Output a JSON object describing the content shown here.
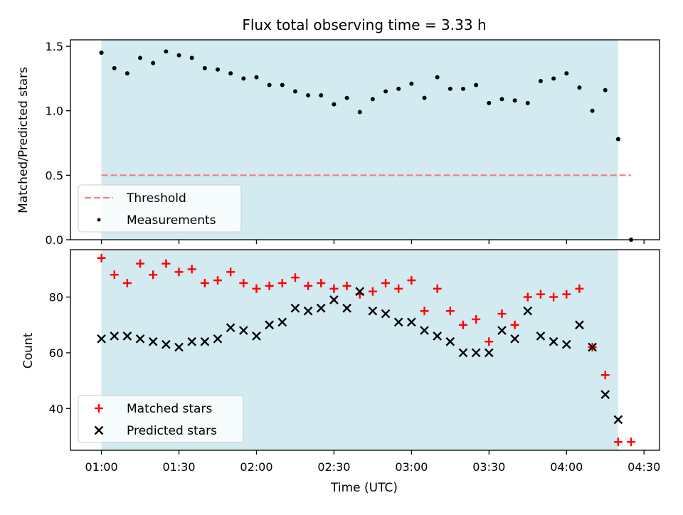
{
  "chart_data": [
    {
      "type": "scatter",
      "title": "Flux total observing time = 3.33 h",
      "xlabel": "",
      "ylabel": "Matched/Predicted stars",
      "xlim": [
        "00:48",
        "04:36"
      ],
      "ylim": [
        0,
        1.55
      ],
      "yticks": [
        0,
        0.5,
        1.0,
        1.5
      ],
      "ytick_labels": [
        "0.0",
        "0.5",
        "1.0",
        "1.5"
      ],
      "observing_window": [
        "01:00",
        "04:20"
      ],
      "observing_window_color": "#d3eaf0",
      "legend_position": "lower-left",
      "series": [
        {
          "name": "Threshold",
          "kind": "line",
          "style": "dashed",
          "color": "#f08080",
          "x": [
            "01:00",
            "04:25"
          ],
          "y": [
            0.5,
            0.5
          ]
        },
        {
          "name": "Measurements",
          "kind": "points",
          "marker": "dot",
          "color": "#000000",
          "x": [
            "01:00",
            "01:05",
            "01:10",
            "01:15",
            "01:20",
            "01:25",
            "01:30",
            "01:35",
            "01:40",
            "01:45",
            "01:50",
            "01:55",
            "02:00",
            "02:05",
            "02:10",
            "02:15",
            "02:20",
            "02:25",
            "02:30",
            "02:35",
            "02:40",
            "02:45",
            "02:50",
            "02:55",
            "03:00",
            "03:05",
            "03:10",
            "03:15",
            "03:20",
            "03:25",
            "03:30",
            "03:35",
            "03:40",
            "03:45",
            "03:50",
            "03:55",
            "04:00",
            "04:05",
            "04:10",
            "04:15",
            "04:20",
            "04:25"
          ],
          "y": [
            1.45,
            1.33,
            1.29,
            1.41,
            1.37,
            1.46,
            1.43,
            1.41,
            1.33,
            1.32,
            1.29,
            1.25,
            1.26,
            1.2,
            1.2,
            1.15,
            1.12,
            1.12,
            1.05,
            1.1,
            0.99,
            1.09,
            1.15,
            1.17,
            1.21,
            1.1,
            1.26,
            1.17,
            1.17,
            1.2,
            1.06,
            1.09,
            1.08,
            1.06,
            1.23,
            1.25,
            1.29,
            1.18,
            1.0,
            1.16,
            0.78,
            0.0
          ]
        }
      ]
    },
    {
      "type": "scatter",
      "title": "",
      "xlabel": "Time (UTC)",
      "ylabel": "Count",
      "xlim": [
        "00:48",
        "04:36"
      ],
      "ylim": [
        25,
        97
      ],
      "xticks": [
        "01:00",
        "01:30",
        "02:00",
        "02:30",
        "03:00",
        "03:30",
        "04:00",
        "04:30"
      ],
      "xtick_labels": [
        "01:00",
        "01:30",
        "02:00",
        "02:30",
        "03:00",
        "03:30",
        "04:00",
        "04:30"
      ],
      "yticks": [
        40,
        60,
        80
      ],
      "ytick_labels": [
        "40",
        "60",
        "80"
      ],
      "observing_window": [
        "01:00",
        "04:20"
      ],
      "observing_window_color": "#d3eaf0",
      "legend_position": "lower-left",
      "series": [
        {
          "name": "Matched stars",
          "kind": "points",
          "marker": "plus",
          "color": "#ff0000",
          "x": [
            "01:00",
            "01:05",
            "01:10",
            "01:15",
            "01:20",
            "01:25",
            "01:30",
            "01:35",
            "01:40",
            "01:45",
            "01:50",
            "01:55",
            "02:00",
            "02:05",
            "02:10",
            "02:15",
            "02:20",
            "02:25",
            "02:30",
            "02:35",
            "02:40",
            "02:45",
            "02:50",
            "02:55",
            "03:00",
            "03:05",
            "03:10",
            "03:15",
            "03:20",
            "03:25",
            "03:30",
            "03:35",
            "03:40",
            "03:45",
            "03:50",
            "03:55",
            "04:00",
            "04:05",
            "04:10",
            "04:15",
            "04:20",
            "04:25"
          ],
          "y": [
            94,
            88,
            85,
            92,
            88,
            92,
            89,
            90,
            85,
            86,
            89,
            85,
            83,
            84,
            85,
            87,
            84,
            85,
            83,
            84,
            81,
            82,
            85,
            83,
            86,
            75,
            83,
            75,
            70,
            72,
            64,
            74,
            70,
            80,
            81,
            80,
            81,
            83,
            62,
            52,
            28,
            28
          ]
        },
        {
          "name": "Predicted stars",
          "kind": "points",
          "marker": "x",
          "color": "#000000",
          "x": [
            "01:00",
            "01:05",
            "01:10",
            "01:15",
            "01:20",
            "01:25",
            "01:30",
            "01:35",
            "01:40",
            "01:45",
            "01:50",
            "01:55",
            "02:00",
            "02:05",
            "02:10",
            "02:15",
            "02:20",
            "02:25",
            "02:30",
            "02:35",
            "02:40",
            "02:45",
            "02:50",
            "02:55",
            "03:00",
            "03:05",
            "03:10",
            "03:15",
            "03:20",
            "03:25",
            "03:30",
            "03:35",
            "03:40",
            "03:45",
            "03:50",
            "03:55",
            "04:00",
            "04:05",
            "04:10",
            "04:15",
            "04:20"
          ],
          "y": [
            65,
            66,
            66,
            65,
            64,
            63,
            62,
            64,
            64,
            65,
            69,
            68,
            66,
            70,
            71,
            76,
            75,
            76,
            79,
            76,
            82,
            75,
            74,
            71,
            71,
            68,
            66,
            64,
            60,
            60,
            60,
            68,
            65,
            75,
            66,
            64,
            63,
            70,
            62,
            45,
            36
          ]
        }
      ]
    }
  ]
}
